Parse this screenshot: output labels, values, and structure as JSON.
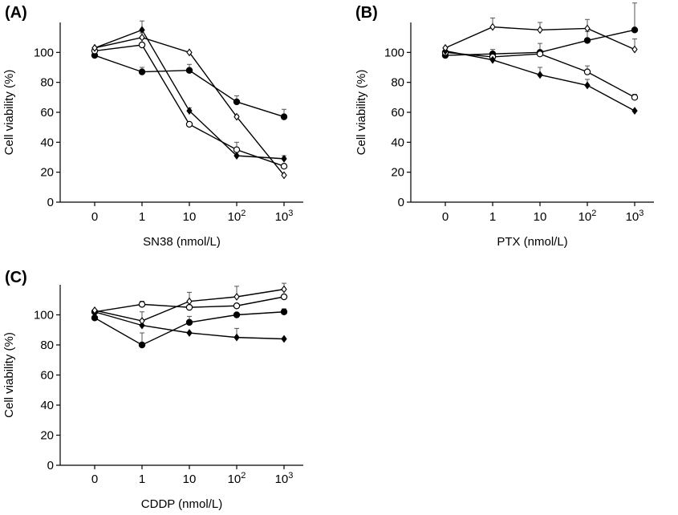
{
  "chart_data": [
    {
      "type": "line",
      "panel_label": "(A)",
      "xlabel": "SN38 (nmol/L)",
      "ylabel": "Cell viability (%)",
      "categories": [
        "0",
        "1",
        "10",
        "102",
        "103"
      ],
      "category_parts": [
        [
          "0",
          ""
        ],
        [
          "1",
          ""
        ],
        [
          "10",
          ""
        ],
        [
          "10",
          "2"
        ],
        [
          "10",
          "3"
        ]
      ],
      "ylim": [
        0,
        120
      ],
      "yticks": [
        0,
        20,
        40,
        60,
        80,
        100
      ],
      "series": [
        {
          "marker": "circle-filled",
          "values": [
            98,
            87,
            88,
            67,
            57
          ],
          "errors": [
            0,
            3,
            4,
            4,
            5
          ]
        },
        {
          "marker": "circle-open",
          "values": [
            101,
            105,
            52,
            35,
            24
          ],
          "errors": [
            0,
            4,
            0,
            5,
            0
          ]
        },
        {
          "marker": "diamond-filled",
          "values": [
            103,
            115,
            61,
            31,
            29
          ],
          "errors": [
            0,
            6,
            2,
            0,
            2
          ]
        },
        {
          "marker": "diamond-open",
          "values": [
            103,
            110,
            100,
            57,
            18
          ],
          "errors": [
            0,
            3,
            0,
            1,
            0
          ]
        }
      ]
    },
    {
      "type": "line",
      "panel_label": "(B)",
      "xlabel": "PTX (nmol/L)",
      "ylabel": "Cell viability (%)",
      "categories": [
        "0",
        "1",
        "10",
        "102",
        "103"
      ],
      "category_parts": [
        [
          "0",
          ""
        ],
        [
          "1",
          ""
        ],
        [
          "10",
          ""
        ],
        [
          "10",
          "2"
        ],
        [
          "10",
          "3"
        ]
      ],
      "ylim": [
        0,
        120
      ],
      "yticks": [
        0,
        20,
        40,
        60,
        80,
        100
      ],
      "series": [
        {
          "marker": "circle-filled",
          "values": [
            98,
            99,
            100,
            108,
            115
          ],
          "errors": [
            0,
            3,
            6,
            6,
            18
          ]
        },
        {
          "marker": "circle-open",
          "values": [
            100,
            97,
            99,
            87,
            70
          ],
          "errors": [
            0,
            0,
            0,
            4,
            2
          ]
        },
        {
          "marker": "diamond-filled",
          "values": [
            101,
            95,
            85,
            78,
            61
          ],
          "errors": [
            0,
            0,
            5,
            4,
            0
          ]
        },
        {
          "marker": "diamond-open",
          "values": [
            103,
            117,
            115,
            116,
            102
          ],
          "errors": [
            0,
            6,
            5,
            6,
            7
          ]
        }
      ]
    },
    {
      "type": "line",
      "panel_label": "(C)",
      "xlabel": "CDDP (nmol/L)",
      "ylabel": "Cell viability (%)",
      "categories": [
        "0",
        "1",
        "10",
        "102",
        "103"
      ],
      "category_parts": [
        [
          "0",
          ""
        ],
        [
          "1",
          ""
        ],
        [
          "10",
          ""
        ],
        [
          "10",
          "2"
        ],
        [
          "10",
          "3"
        ]
      ],
      "ylim": [
        0,
        120
      ],
      "yticks": [
        0,
        20,
        40,
        60,
        80,
        100
      ],
      "series": [
        {
          "marker": "circle-filled",
          "values": [
            98,
            80,
            95,
            100,
            102
          ],
          "errors": [
            0,
            8,
            4,
            0,
            2
          ]
        },
        {
          "marker": "circle-open",
          "values": [
            102,
            107,
            105,
            106,
            112
          ],
          "errors": [
            0,
            2,
            0,
            0,
            0
          ]
        },
        {
          "marker": "diamond-filled",
          "values": [
            102,
            93,
            88,
            85,
            84
          ],
          "errors": [
            0,
            0,
            0,
            6,
            0
          ]
        },
        {
          "marker": "diamond-open",
          "values": [
            103,
            96,
            109,
            112,
            117
          ],
          "errors": [
            0,
            6,
            6,
            7,
            4
          ]
        }
      ]
    }
  ]
}
